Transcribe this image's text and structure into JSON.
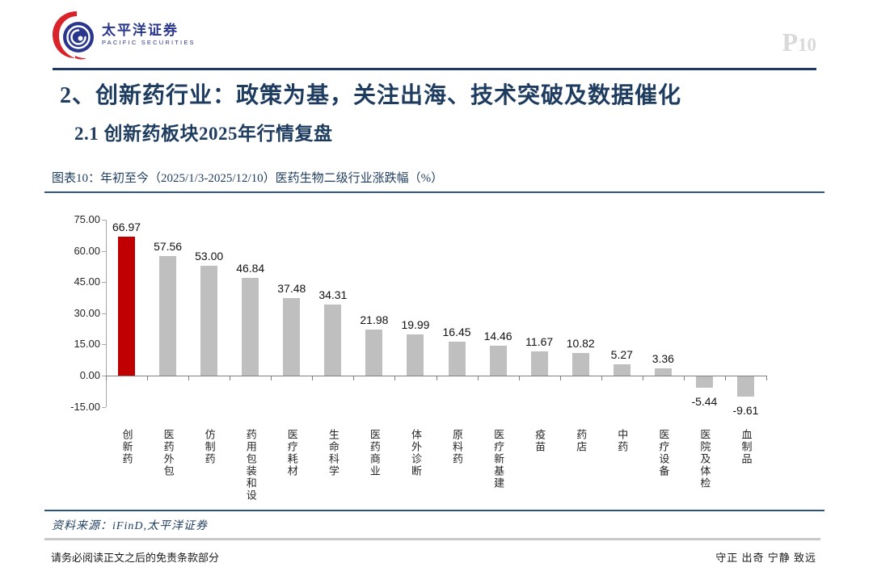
{
  "page": {
    "logo_cn": "太平洋证券",
    "logo_en": "PACIFIC SECURITIES",
    "page_number_prefix": "P",
    "page_number": "10",
    "title": "2、创新药行业：政策为基，关注出海、技术突破及数据催化",
    "subtitle": "2.1 创新药板块2025年行情复盘",
    "figure_caption": "图表10：年初至今（2025/1/3-2025/12/10）医药生物二级行业涨跌幅（%）",
    "source": "资料来源：iFinD,太平洋证券",
    "footer_left": "请务必阅读正文之后的免责条款部分",
    "footer_right": "守正 出奇 宁静 致远"
  },
  "colors": {
    "accent_navy": "#1E3C5F",
    "header_line_navy": "#1F3864",
    "figure_border_navy": "#2E5484",
    "logo_blue": "#29368C",
    "logo_red": "#D8232A",
    "page_number_gray": "#D9D9D9",
    "footer_divider_gray": "#C8C8C8"
  },
  "chart_data": {
    "type": "bar",
    "title": "年初至今（2025/1/3-2025/12/10）医药生物二级行业涨跌幅（%）",
    "xlabel": "",
    "ylabel": "",
    "categories": [
      "创新药",
      "医药外包",
      "仿制药",
      "药用包装和设备",
      "医疗耗材",
      "生命科学",
      "医药商业",
      "体外诊断",
      "原料药",
      "医疗新基建",
      "疫苗",
      "药店",
      "中药",
      "医疗设备",
      "医院及体检",
      "血制品"
    ],
    "values": [
      66.97,
      57.56,
      53.0,
      46.84,
      37.48,
      34.31,
      21.98,
      19.99,
      16.45,
      14.46,
      11.67,
      10.82,
      5.27,
      3.36,
      -5.44,
      -9.61
    ],
    "value_labels": [
      "66.97",
      "57.56",
      "53.00",
      "46.84",
      "37.48",
      "34.31",
      "21.98",
      "19.99",
      "16.45",
      "14.46",
      "11.67",
      "10.82",
      "5.27",
      "3.36",
      "-5.44",
      "-9.61"
    ],
    "highlight_index": 0,
    "highlight_color": "#C00000",
    "bar_color": "#BFBFBF",
    "ylim": [
      -15,
      75
    ],
    "ytick_step": 15,
    "yticks": [
      "75.00",
      "60.00",
      "45.00",
      "30.00",
      "15.00",
      "0.00",
      "-15.00"
    ],
    "grid": false,
    "legend": "none",
    "value_labels_shown": true
  }
}
